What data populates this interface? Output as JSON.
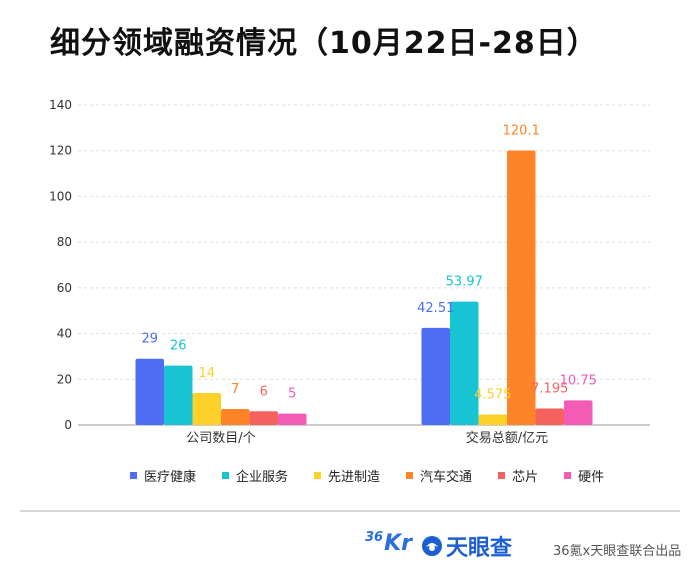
{
  "title": "细分领域融资情况（10月22日-28日）",
  "chart_data": {
    "type": "bar",
    "title": "细分领域融资情况（10月22日-28日）",
    "categories": [
      "公司数目/个",
      "交易总额/亿元"
    ],
    "series": [
      {
        "name": "医疗健康",
        "color": "#4e6ef2",
        "values": [
          29,
          42.51
        ],
        "labels": [
          "29",
          "42.51"
        ]
      },
      {
        "name": "企业服务",
        "color": "#18c4d4",
        "values": [
          26,
          53.97
        ],
        "labels": [
          "26",
          "53.97"
        ]
      },
      {
        "name": "先进制造",
        "color": "#fcd12a",
        "values": [
          14,
          4.575
        ],
        "labels": [
          "14",
          "4.575"
        ]
      },
      {
        "name": "汽车交通",
        "color": "#ff8427",
        "values": [
          7,
          120.1
        ],
        "labels": [
          "7",
          "120.1"
        ]
      },
      {
        "name": "芯片",
        "color": "#f5625e",
        "values": [
          6,
          7.195
        ],
        "labels": [
          "6",
          "7.195"
        ]
      },
      {
        "name": "硬件",
        "color": "#f25bb6",
        "values": [
          5,
          10.75
        ],
        "labels": [
          "5",
          "10.75"
        ]
      }
    ],
    "ylim": [
      0,
      140
    ],
    "yticks": [
      0,
      20,
      40,
      60,
      80,
      100,
      120,
      140
    ],
    "grid": true,
    "legend_position": "bottom",
    "xlabel": "",
    "ylabel": ""
  },
  "footer": {
    "logo_36kr_num": "36",
    "logo_36kr_text": "Kr",
    "logo_tianyancha": "天眼查",
    "credit": "36氪x天眼查联合出品"
  },
  "colors": {
    "grid": "#dddddd",
    "axis": "#bbbbbb",
    "text": "#333333"
  }
}
